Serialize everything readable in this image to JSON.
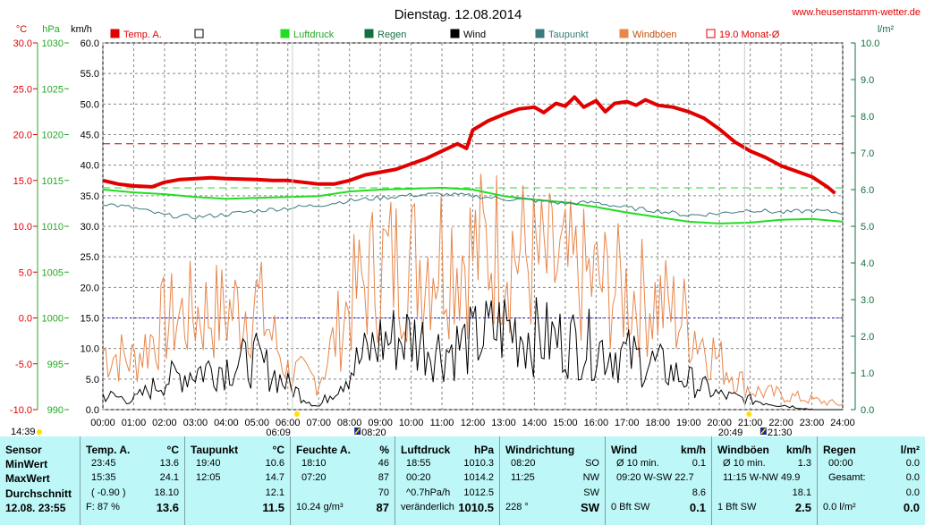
{
  "header": {
    "title": "Dienstag. 12.08.2014",
    "website": "www.heusenstamm-wetter.de",
    "units_left": [
      "°C",
      "hPa",
      "km/h"
    ],
    "unit_right": "l/m²"
  },
  "legend": [
    {
      "label": "Temp. A.",
      "color": "#e00000",
      "style": "filled"
    },
    {
      "label": "",
      "color": "#000000",
      "style": "empty"
    },
    {
      "label": "Luftdruck",
      "color": "#22dd22",
      "style": "filled"
    },
    {
      "label": "Regen",
      "color": "#107040",
      "style": "filled"
    },
    {
      "label": "Wind",
      "color": "#000000",
      "style": "filled"
    },
    {
      "label": "Taupunkt",
      "color": "#3a7a7a",
      "style": "filled"
    },
    {
      "label": "Windböen",
      "color": "#e8864a",
      "style": "filled"
    },
    {
      "label": "19.0 Monat-Ø",
      "color": "#e00000",
      "style": "empty"
    }
  ],
  "chart_data": {
    "type": "line",
    "x_range": [
      "00:00",
      "24:00"
    ],
    "x_ticks": [
      "00:00",
      "01:00",
      "02:00",
      "03:00",
      "04:00",
      "05:00",
      "06:00",
      "07:00",
      "08:00",
      "09:00",
      "10:00",
      "11:00",
      "12:00",
      "13:00",
      "14:00",
      "15:00",
      "16:00",
      "17:00",
      "18:00",
      "19:00",
      "20:00",
      "21:00",
      "22:00",
      "23:00",
      "24:00"
    ],
    "axes": {
      "temp_c": {
        "ticks": [
          "30.0",
          "25.0",
          "20.0",
          "15.0",
          "10.0",
          "5.0",
          "0.0",
          "-5.0",
          "-10.0"
        ],
        "range": [
          -10,
          30
        ],
        "color": "#e00000"
      },
      "pressure_hpa": {
        "ticks": [
          "1030",
          "1025",
          "1020",
          "1015",
          "1010",
          "1005",
          "1000",
          "995",
          "990"
        ],
        "range": [
          990,
          1030
        ],
        "color": "#22aa22"
      },
      "wind_kmh": {
        "ticks": [
          "60.0",
          "55.0",
          "50.0",
          "45.0",
          "40.0",
          "35.0",
          "30.0",
          "25.0",
          "20.0",
          "15.0",
          "10.0",
          "5.0",
          "0.0"
        ],
        "range": [
          0,
          60
        ],
        "color": "#000000"
      },
      "rain_lm2": {
        "ticks": [
          "10.0",
          "9.0",
          "8.0",
          "7.0",
          "6.0",
          "5.0",
          "4.0",
          "3.0",
          "2.0",
          "1.0",
          "0.0"
        ],
        "range": [
          0,
          10
        ],
        "color": "#107040"
      }
    },
    "markers": {
      "sunrise": "06:09",
      "sunset": "20:49",
      "moonrise": "08:20",
      "moonset": "21:30",
      "left_time": "14:39"
    },
    "reference_lines": [
      {
        "name": "19.0 Monat-Ø",
        "axis": "temp_c",
        "value": 19.0,
        "color": "#c00000"
      },
      {
        "axis": "temp_c",
        "value": 0.0,
        "color": "#0000cc"
      },
      {
        "axis": "pressure_hpa",
        "value": 1014.2,
        "color": "#22dd22"
      }
    ],
    "series": [
      {
        "name": "Temp. A.",
        "axis": "temp_c",
        "color": "#e00000",
        "width": 4,
        "points": [
          [
            0,
            15
          ],
          [
            0.5,
            14.6
          ],
          [
            1,
            14.4
          ],
          [
            1.6,
            14.3
          ],
          [
            2,
            14.8
          ],
          [
            2.5,
            15.1
          ],
          [
            3,
            15.2
          ],
          [
            3.5,
            15.3
          ],
          [
            4,
            15.2
          ],
          [
            5,
            15.1
          ],
          [
            5.5,
            15.0
          ],
          [
            6,
            15.0
          ],
          [
            6.5,
            14.8
          ],
          [
            7,
            14.6
          ],
          [
            7.5,
            14.6
          ],
          [
            8,
            15
          ],
          [
            8.5,
            15.6
          ],
          [
            9,
            15.9
          ],
          [
            9.5,
            16.2
          ],
          [
            10,
            16.8
          ],
          [
            10.5,
            17.4
          ],
          [
            11,
            18.2
          ],
          [
            11.5,
            19
          ],
          [
            11.8,
            18.5
          ],
          [
            12,
            20.5
          ],
          [
            12.5,
            21.5
          ],
          [
            13,
            22.2
          ],
          [
            13.5,
            22.8
          ],
          [
            14,
            23.0
          ],
          [
            14.3,
            22.4
          ],
          [
            14.7,
            23.4
          ],
          [
            15,
            23.1
          ],
          [
            15.3,
            24.1
          ],
          [
            15.6,
            23.0
          ],
          [
            16,
            23.7
          ],
          [
            16.3,
            22.5
          ],
          [
            16.6,
            23.4
          ],
          [
            17,
            23.6
          ],
          [
            17.3,
            23.2
          ],
          [
            17.6,
            23.8
          ],
          [
            18,
            23.2
          ],
          [
            18.5,
            23.0
          ],
          [
            19,
            22.5
          ],
          [
            19.5,
            21.8
          ],
          [
            20,
            20.6
          ],
          [
            20.5,
            19.2
          ],
          [
            21,
            18.2
          ],
          [
            21.5,
            17.5
          ],
          [
            22,
            16.6
          ],
          [
            22.5,
            16.0
          ],
          [
            23,
            15.4
          ],
          [
            23.5,
            14.3
          ],
          [
            23.75,
            13.6
          ]
        ]
      },
      {
        "name": "Luftdruck",
        "axis": "pressure_hpa",
        "color": "#22dd22",
        "width": 2,
        "points": [
          [
            0,
            1014
          ],
          [
            1,
            1013.7
          ],
          [
            2,
            1013.5
          ],
          [
            3,
            1013.2
          ],
          [
            4,
            1013.0
          ],
          [
            5,
            1013.1
          ],
          [
            6,
            1013.2
          ],
          [
            7,
            1013.3
          ],
          [
            8,
            1013.8
          ],
          [
            9,
            1014.0
          ],
          [
            10,
            1014.1
          ],
          [
            11,
            1014.2
          ],
          [
            12,
            1014.0
          ],
          [
            13,
            1013.3
          ],
          [
            14,
            1012.9
          ],
          [
            15,
            1012.6
          ],
          [
            16,
            1012.1
          ],
          [
            17,
            1011.5
          ],
          [
            18,
            1011.0
          ],
          [
            19,
            1010.5
          ],
          [
            20,
            1010.3
          ],
          [
            21,
            1010.4
          ],
          [
            22,
            1010.7
          ],
          [
            23,
            1010.8
          ],
          [
            24,
            1010.5
          ]
        ]
      },
      {
        "name": "Taupunkt",
        "axis": "temp_c",
        "color": "#3a7a7a",
        "width": 1,
        "points": [
          [
            0,
            12.5
          ],
          [
            1,
            12.0
          ],
          [
            2,
            11.2
          ],
          [
            3,
            11.0
          ],
          [
            4,
            11.3
          ],
          [
            5,
            11.7
          ],
          [
            6,
            12.0
          ],
          [
            7,
            12.3
          ],
          [
            8,
            12.8
          ],
          [
            9,
            13.1
          ],
          [
            10,
            13.4
          ],
          [
            11,
            13.5
          ],
          [
            12,
            13.3
          ],
          [
            13,
            13.0
          ],
          [
            14,
            12.8
          ],
          [
            15,
            12.5
          ],
          [
            16,
            12.6
          ],
          [
            17,
            12.0
          ],
          [
            18,
            11.7
          ],
          [
            19,
            11.2
          ],
          [
            20,
            11.4
          ],
          [
            21,
            11.8
          ],
          [
            22,
            11.5
          ],
          [
            23,
            11.7
          ],
          [
            24,
            11.5
          ]
        ]
      }
    ],
    "noisy_series": [
      {
        "name": "Wind",
        "axis": "wind_kmh",
        "color": "#000000",
        "envelope": [
          [
            0,
            3
          ],
          [
            1,
            2
          ],
          [
            2,
            6
          ],
          [
            3,
            8
          ],
          [
            4,
            9
          ],
          [
            5,
            10
          ],
          [
            6,
            5
          ],
          [
            7,
            0.5
          ],
          [
            8,
            8
          ],
          [
            9,
            14
          ],
          [
            10,
            15
          ],
          [
            11,
            12
          ],
          [
            12,
            14
          ],
          [
            13,
            17
          ],
          [
            14,
            15
          ],
          [
            15,
            14
          ],
          [
            16,
            13
          ],
          [
            17,
            11
          ],
          [
            18,
            9
          ],
          [
            19,
            6
          ],
          [
            20,
            3
          ],
          [
            21,
            2
          ],
          [
            22,
            1
          ],
          [
            23,
            0
          ],
          [
            24,
            0
          ]
        ]
      },
      {
        "name": "Windböen",
        "axis": "wind_kmh",
        "color": "#e8864a",
        "envelope": [
          [
            0,
            12
          ],
          [
            1,
            10
          ],
          [
            2,
            18
          ],
          [
            3,
            20
          ],
          [
            4,
            20
          ],
          [
            5,
            22
          ],
          [
            6,
            8
          ],
          [
            7,
            6
          ],
          [
            8,
            22
          ],
          [
            9,
            30
          ],
          [
            10,
            30
          ],
          [
            11,
            33
          ],
          [
            12,
            32
          ],
          [
            13,
            34
          ],
          [
            14,
            30
          ],
          [
            15,
            28
          ],
          [
            16,
            26
          ],
          [
            17,
            24
          ],
          [
            18,
            22
          ],
          [
            19,
            18
          ],
          [
            20,
            10
          ],
          [
            21,
            4
          ],
          [
            22,
            3
          ],
          [
            23,
            2
          ],
          [
            24,
            1
          ]
        ]
      }
    ]
  },
  "table": {
    "sensor": {
      "header": "Sensor",
      "rows": [
        "MinWert",
        "MaxWert",
        "Durchschnitt",
        "12.08. 23:55"
      ]
    },
    "temp": {
      "header": "Temp. A.",
      "unit": "°C",
      "rows": [
        [
          "23:45",
          "13.6"
        ],
        [
          "15:35",
          "24.1"
        ],
        [
          "( -0.90 )",
          "18.10"
        ],
        [
          "F: 87 %",
          "13.6"
        ]
      ]
    },
    "taupunkt": {
      "header": "Taupunkt",
      "unit": "°C",
      "rows": [
        [
          "19:40",
          "10.6"
        ],
        [
          "12:05",
          "14.7"
        ],
        [
          "",
          "12.1"
        ],
        [
          "",
          "11.5"
        ]
      ]
    },
    "feuchte": {
      "header": "Feuchte A.",
      "unit": "%",
      "rows": [
        [
          "18:10",
          "46"
        ],
        [
          "07:20",
          "87"
        ],
        [
          "",
          "70"
        ],
        [
          "10.24 g/m³",
          "87"
        ]
      ]
    },
    "luftdruck": {
      "header": "Luftdruck",
      "unit": "hPa",
      "rows": [
        [
          "18:55",
          "1010.3"
        ],
        [
          "00:20",
          "1014.2"
        ],
        [
          "^0.7hPa/h",
          "1012.5"
        ],
        [
          "veränderlich",
          "1010.5"
        ]
      ]
    },
    "windrichtung": {
      "header": "Windrichtung",
      "unit": "",
      "rows": [
        [
          "08:20",
          "SO"
        ],
        [
          "11:25",
          "NW"
        ],
        [
          "",
          "SW"
        ],
        [
          "228 °",
          "SW"
        ]
      ]
    },
    "wind": {
      "header": "Wind",
      "unit": "km/h",
      "rows": [
        [
          "Ø 10 min.",
          "0.1"
        ],
        [
          "09:20   W-SW 22.7",
          ""
        ],
        [
          "",
          "8.6"
        ],
        [
          "0 Bft SW",
          "0.1"
        ]
      ]
    },
    "windboeen": {
      "header": "Windböen",
      "unit": "km/h",
      "rows": [
        [
          "Ø 10 min.",
          "1.3"
        ],
        [
          "11:15   W-NW 49.9",
          ""
        ],
        [
          "",
          "18.1"
        ],
        [
          "1 Bft SW",
          "2.5"
        ]
      ]
    },
    "regen": {
      "header": "Regen",
      "unit": "l/m²",
      "rows": [
        [
          "00:00",
          "0.0"
        ],
        [
          "Gesamt:",
          "0.0"
        ],
        [
          "",
          "0.0"
        ],
        [
          "0.0 l/m²",
          "0.0"
        ]
      ]
    }
  }
}
